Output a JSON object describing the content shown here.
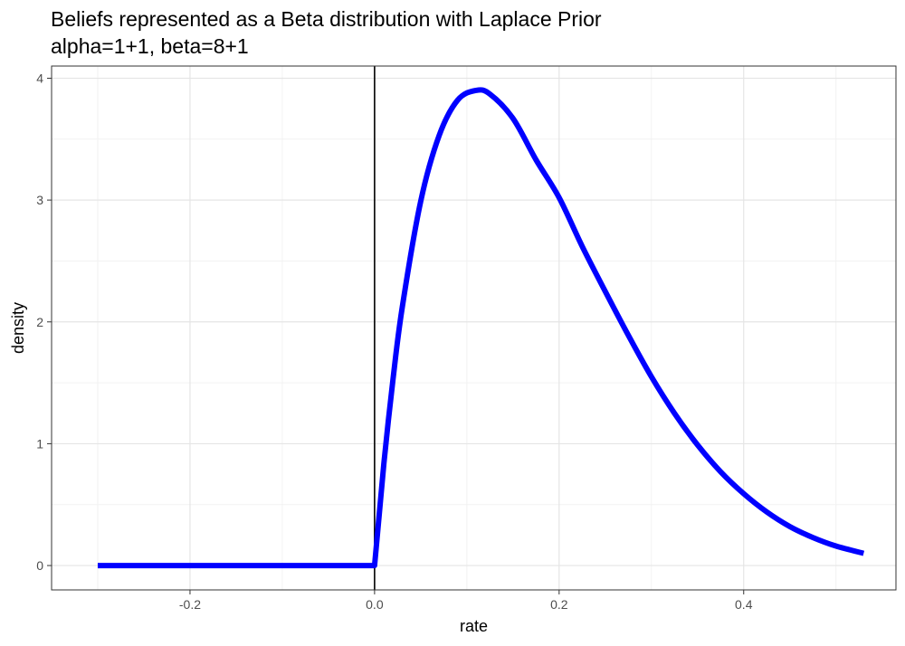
{
  "chart_data": {
    "type": "line",
    "title": "Beliefs represented as a Beta distribution with Laplace Prior",
    "subtitle": "alpha=1+1, beta=8+1",
    "xlabel": "rate",
    "ylabel": "density",
    "xlim": [
      -0.35,
      0.565
    ],
    "ylim": [
      -0.2,
      4.1
    ],
    "x_ticks": [
      -0.2,
      0.0,
      0.2,
      0.4
    ],
    "x_tick_labels": [
      "-0.2",
      "0.0",
      "0.2",
      "0.4"
    ],
    "y_ticks": [
      0,
      1,
      2,
      3,
      4
    ],
    "y_tick_labels": [
      "0",
      "1",
      "2",
      "3",
      "4"
    ],
    "grid": true,
    "vline_x": 0,
    "line_color": "#0000ff",
    "series": [
      {
        "x": [
          -0.3,
          -0.2,
          -0.1,
          0.0,
          0.01,
          0.02,
          0.03,
          0.05,
          0.07,
          0.09,
          0.11,
          0.125,
          0.15,
          0.175,
          0.2,
          0.225,
          0.25,
          0.275,
          0.3,
          0.325,
          0.35,
          0.375,
          0.4,
          0.425,
          0.45,
          0.475,
          0.5,
          0.53
        ],
        "y": [
          0,
          0,
          0,
          0,
          0.83,
          1.53,
          2.12,
          2.99,
          3.53,
          3.82,
          3.9,
          3.87,
          3.67,
          3.33,
          3.02,
          2.62,
          2.25,
          1.89,
          1.55,
          1.25,
          0.99,
          0.77,
          0.59,
          0.44,
          0.32,
          0.23,
          0.16,
          0.1
        ]
      }
    ]
  }
}
